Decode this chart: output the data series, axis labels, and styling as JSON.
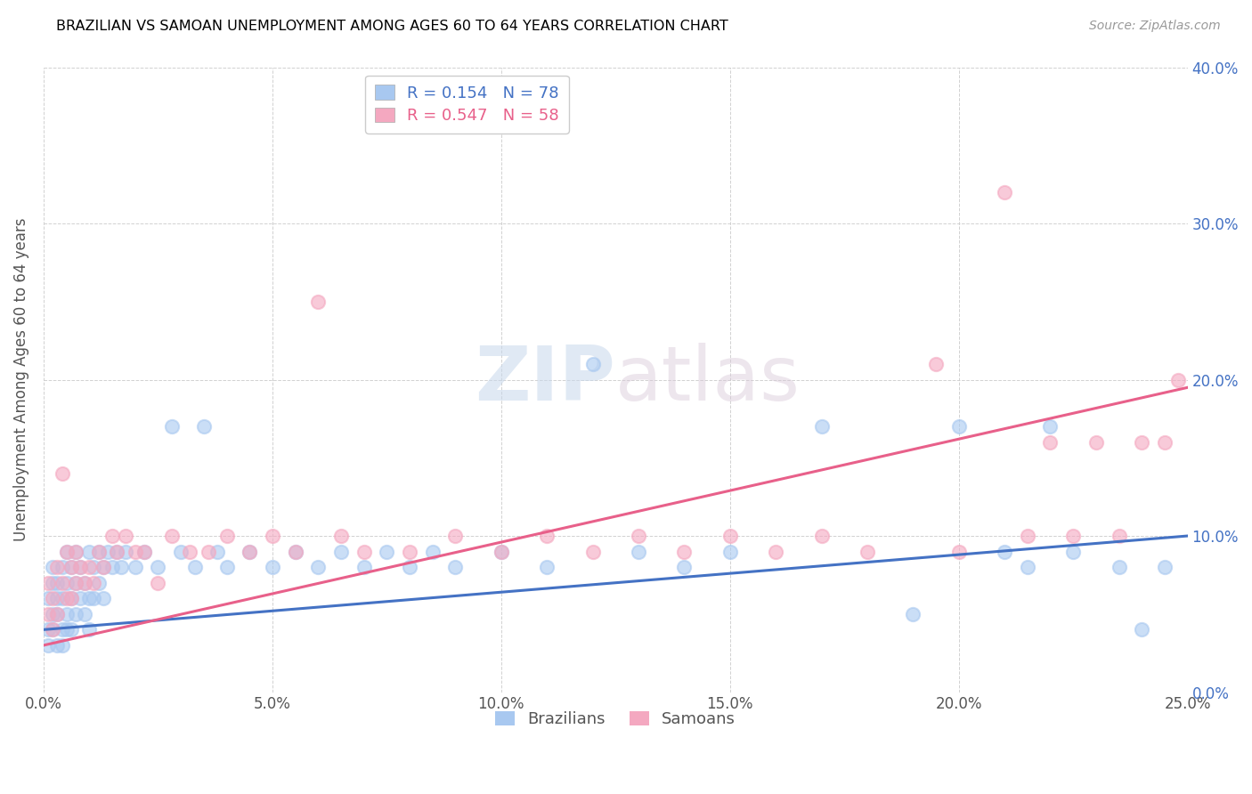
{
  "title": "BRAZILIAN VS SAMOAN UNEMPLOYMENT AMONG AGES 60 TO 64 YEARS CORRELATION CHART",
  "source": "Source: ZipAtlas.com",
  "ylabel": "Unemployment Among Ages 60 to 64 years",
  "watermark": "ZIPatlas",
  "brazilian_color": "#a8c8f0",
  "samoan_color": "#f4a8c0",
  "brazilian_line_color": "#4472c4",
  "samoan_line_color": "#e8608a",
  "brazil_R": 0.154,
  "brazil_N": 78,
  "samoan_R": 0.547,
  "samoan_N": 58,
  "xlim": [
    0.0,
    0.25
  ],
  "ylim": [
    0.0,
    0.4
  ],
  "xtick_vals": [
    0.0,
    0.05,
    0.1,
    0.15,
    0.2,
    0.25
  ],
  "xtick_labels": [
    "0.0%",
    "5.0%",
    "10.0%",
    "15.0%",
    "20.0%",
    "25.0%"
  ],
  "ytick_vals": [
    0.0,
    0.1,
    0.2,
    0.3,
    0.4
  ],
  "ytick_labels": [
    "0.0%",
    "10.0%",
    "20.0%",
    "30.0%",
    "40.0%"
  ],
  "brazil_line_x0": 0.0,
  "brazil_line_y0": 0.04,
  "brazil_line_x1": 0.25,
  "brazil_line_y1": 0.1,
  "samoan_line_x0": 0.0,
  "samoan_line_y0": 0.03,
  "samoan_line_x1": 0.25,
  "samoan_line_y1": 0.195,
  "brazilians_x": [
    0.001,
    0.001,
    0.001,
    0.002,
    0.002,
    0.002,
    0.002,
    0.003,
    0.003,
    0.003,
    0.003,
    0.004,
    0.004,
    0.004,
    0.004,
    0.005,
    0.005,
    0.005,
    0.005,
    0.006,
    0.006,
    0.006,
    0.007,
    0.007,
    0.007,
    0.008,
    0.008,
    0.009,
    0.009,
    0.01,
    0.01,
    0.01,
    0.011,
    0.011,
    0.012,
    0.012,
    0.013,
    0.013,
    0.014,
    0.015,
    0.016,
    0.017,
    0.018,
    0.02,
    0.022,
    0.025,
    0.028,
    0.03,
    0.033,
    0.035,
    0.038,
    0.04,
    0.045,
    0.05,
    0.055,
    0.06,
    0.065,
    0.07,
    0.075,
    0.08,
    0.085,
    0.09,
    0.1,
    0.11,
    0.12,
    0.13,
    0.14,
    0.15,
    0.17,
    0.19,
    0.2,
    0.21,
    0.215,
    0.22,
    0.225,
    0.235,
    0.24,
    0.245
  ],
  "brazilians_y": [
    0.04,
    0.06,
    0.03,
    0.05,
    0.07,
    0.04,
    0.08,
    0.06,
    0.03,
    0.07,
    0.05,
    0.08,
    0.04,
    0.06,
    0.03,
    0.09,
    0.05,
    0.07,
    0.04,
    0.08,
    0.06,
    0.04,
    0.09,
    0.05,
    0.07,
    0.06,
    0.08,
    0.05,
    0.07,
    0.09,
    0.06,
    0.04,
    0.08,
    0.06,
    0.09,
    0.07,
    0.08,
    0.06,
    0.09,
    0.08,
    0.09,
    0.08,
    0.09,
    0.08,
    0.09,
    0.08,
    0.17,
    0.09,
    0.08,
    0.17,
    0.09,
    0.08,
    0.09,
    0.08,
    0.09,
    0.08,
    0.09,
    0.08,
    0.09,
    0.08,
    0.09,
    0.08,
    0.09,
    0.08,
    0.21,
    0.09,
    0.08,
    0.09,
    0.17,
    0.05,
    0.17,
    0.09,
    0.08,
    0.17,
    0.09,
    0.08,
    0.04,
    0.08
  ],
  "samoans_x": [
    0.001,
    0.001,
    0.002,
    0.002,
    0.003,
    0.003,
    0.004,
    0.004,
    0.005,
    0.005,
    0.006,
    0.006,
    0.007,
    0.007,
    0.008,
    0.009,
    0.01,
    0.011,
    0.012,
    0.013,
    0.015,
    0.016,
    0.018,
    0.02,
    0.022,
    0.025,
    0.028,
    0.032,
    0.036,
    0.04,
    0.045,
    0.05,
    0.055,
    0.06,
    0.065,
    0.07,
    0.08,
    0.09,
    0.1,
    0.11,
    0.12,
    0.13,
    0.14,
    0.15,
    0.16,
    0.17,
    0.18,
    0.195,
    0.2,
    0.21,
    0.215,
    0.22,
    0.225,
    0.23,
    0.235,
    0.24,
    0.245,
    0.248
  ],
  "samoans_y": [
    0.05,
    0.07,
    0.04,
    0.06,
    0.08,
    0.05,
    0.14,
    0.07,
    0.06,
    0.09,
    0.08,
    0.06,
    0.09,
    0.07,
    0.08,
    0.07,
    0.08,
    0.07,
    0.09,
    0.08,
    0.1,
    0.09,
    0.1,
    0.09,
    0.09,
    0.07,
    0.1,
    0.09,
    0.09,
    0.1,
    0.09,
    0.1,
    0.09,
    0.25,
    0.1,
    0.09,
    0.09,
    0.1,
    0.09,
    0.1,
    0.09,
    0.1,
    0.09,
    0.1,
    0.09,
    0.1,
    0.09,
    0.21,
    0.09,
    0.32,
    0.1,
    0.16,
    0.1,
    0.16,
    0.1,
    0.16,
    0.16,
    0.2
  ]
}
